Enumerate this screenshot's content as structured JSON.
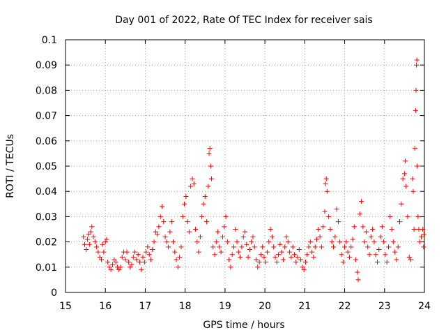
{
  "chart_data": {
    "type": "scatter",
    "title": "Day 001 of 2022, Rate Of TEC Index for receiver sais",
    "xlabel": "GPS time / hours",
    "ylabel": "ROTI / TECUs",
    "xlim": [
      15,
      24
    ],
    "ylim": [
      0,
      0.1
    ],
    "xticks": [
      "15",
      "16",
      "17",
      "18",
      "19",
      "20",
      "21",
      "22",
      "23",
      "24"
    ],
    "yticks": [
      "0",
      "0.01",
      "0.02",
      "0.03",
      "0.04",
      "0.05",
      "0.06",
      "0.07",
      "0.08",
      "0.09",
      "0.1"
    ],
    "grid": true,
    "marker": "+",
    "color": "#ff0000",
    "series": [
      {
        "points": [
          [
            15.45,
            0.022
          ],
          [
            15.48,
            0.019
          ],
          [
            15.52,
            0.017
          ],
          [
            15.55,
            0.021
          ],
          [
            15.58,
            0.023
          ],
          [
            15.6,
            0.019
          ],
          [
            15.63,
            0.024
          ],
          [
            15.66,
            0.026
          ],
          [
            15.7,
            0.022
          ],
          [
            15.74,
            0.02
          ],
          [
            15.78,
            0.018
          ],
          [
            15.82,
            0.016
          ],
          [
            15.86,
            0.014
          ],
          [
            15.9,
            0.013
          ],
          [
            15.93,
            0.019
          ],
          [
            15.96,
            0.016
          ],
          [
            16.0,
            0.02
          ],
          [
            16.03,
            0.021
          ],
          [
            16.06,
            0.012
          ],
          [
            16.1,
            0.01
          ],
          [
            16.14,
            0.009
          ],
          [
            16.18,
            0.011
          ],
          [
            16.22,
            0.013
          ],
          [
            16.26,
            0.012
          ],
          [
            16.3,
            0.01
          ],
          [
            16.34,
            0.009
          ],
          [
            16.38,
            0.01
          ],
          [
            16.42,
            0.014
          ],
          [
            16.46,
            0.016
          ],
          [
            16.5,
            0.013
          ],
          [
            16.54,
            0.016
          ],
          [
            16.58,
            0.012
          ],
          [
            16.62,
            0.01
          ],
          [
            16.66,
            0.011
          ],
          [
            16.7,
            0.014
          ],
          [
            16.74,
            0.016
          ],
          [
            16.78,
            0.013
          ],
          [
            16.82,
            0.015
          ],
          [
            16.86,
            0.012
          ],
          [
            16.9,
            0.009
          ],
          [
            16.94,
            0.014
          ],
          [
            16.98,
            0.012
          ],
          [
            17.02,
            0.016
          ],
          [
            17.06,
            0.018
          ],
          [
            17.1,
            0.015
          ],
          [
            17.14,
            0.013
          ],
          [
            17.18,
            0.017
          ],
          [
            17.22,
            0.02
          ],
          [
            17.26,
            0.024
          ],
          [
            17.3,
            0.023
          ],
          [
            17.34,
            0.026
          ],
          [
            17.38,
            0.03
          ],
          [
            17.42,
            0.034
          ],
          [
            17.46,
            0.028
          ],
          [
            17.5,
            0.022
          ],
          [
            17.54,
            0.02
          ],
          [
            17.58,
            0.018
          ],
          [
            17.62,
            0.024
          ],
          [
            17.66,
            0.028
          ],
          [
            17.7,
            0.02
          ],
          [
            17.74,
            0.016
          ],
          [
            17.78,
            0.013
          ],
          [
            17.82,
            0.01
          ],
          [
            17.86,
            0.014
          ],
          [
            17.9,
            0.018
          ],
          [
            17.94,
            0.03
          ],
          [
            17.98,
            0.035
          ],
          [
            18.02,
            0.038
          ],
          [
            18.06,
            0.028
          ],
          [
            18.1,
            0.024
          ],
          [
            18.14,
            0.042
          ],
          [
            18.18,
            0.045
          ],
          [
            18.22,
            0.043
          ],
          [
            18.26,
            0.025
          ],
          [
            18.3,
            0.02
          ],
          [
            18.34,
            0.016
          ],
          [
            18.38,
            0.022
          ],
          [
            18.42,
            0.03
          ],
          [
            18.46,
            0.035
          ],
          [
            18.5,
            0.038
          ],
          [
            18.54,
            0.028
          ],
          [
            18.58,
            0.042
          ],
          [
            18.6,
            0.055
          ],
          [
            18.62,
            0.057
          ],
          [
            18.64,
            0.05
          ],
          [
            18.66,
            0.045
          ],
          [
            18.7,
            0.018
          ],
          [
            18.74,
            0.015
          ],
          [
            18.78,
            0.02
          ],
          [
            18.82,
            0.024
          ],
          [
            18.86,
            0.018
          ],
          [
            18.9,
            0.016
          ],
          [
            18.94,
            0.022
          ],
          [
            18.98,
            0.026
          ],
          [
            19.02,
            0.03
          ],
          [
            19.06,
            0.02
          ],
          [
            19.1,
            0.013
          ],
          [
            19.14,
            0.01
          ],
          [
            19.18,
            0.015
          ],
          [
            19.22,
            0.018
          ],
          [
            19.26,
            0.025
          ],
          [
            19.3,
            0.02
          ],
          [
            19.34,
            0.016
          ],
          [
            19.38,
            0.014
          ],
          [
            19.42,
            0.018
          ],
          [
            19.46,
            0.022
          ],
          [
            19.5,
            0.024
          ],
          [
            19.54,
            0.019
          ],
          [
            19.58,
            0.014
          ],
          [
            19.62,
            0.017
          ],
          [
            19.66,
            0.02
          ],
          [
            19.7,
            0.022
          ],
          [
            19.74,
            0.018
          ],
          [
            19.78,
            0.013
          ],
          [
            19.82,
            0.01
          ],
          [
            19.86,
            0.012
          ],
          [
            19.9,
            0.015
          ],
          [
            19.94,
            0.018
          ],
          [
            19.98,
            0.014
          ],
          [
            20.02,
            0.012
          ],
          [
            20.06,
            0.016
          ],
          [
            20.1,
            0.02
          ],
          [
            20.14,
            0.025
          ],
          [
            20.18,
            0.022
          ],
          [
            20.22,
            0.018
          ],
          [
            20.26,
            0.014
          ],
          [
            20.3,
            0.012
          ],
          [
            20.34,
            0.015
          ],
          [
            20.38,
            0.019
          ],
          [
            20.42,
            0.016
          ],
          [
            20.46,
            0.013
          ],
          [
            20.5,
            0.018
          ],
          [
            20.54,
            0.022
          ],
          [
            20.58,
            0.02
          ],
          [
            20.62,
            0.016
          ],
          [
            20.66,
            0.014
          ],
          [
            20.7,
            0.018
          ],
          [
            20.74,
            0.015
          ],
          [
            20.78,
            0.012
          ],
          [
            20.82,
            0.014
          ],
          [
            20.86,
            0.017
          ],
          [
            20.9,
            0.013
          ],
          [
            20.94,
            0.01
          ],
          [
            20.98,
            0.009
          ],
          [
            21.02,
            0.012
          ],
          [
            21.06,
            0.015
          ],
          [
            21.1,
            0.018
          ],
          [
            21.14,
            0.02
          ],
          [
            21.18,
            0.016
          ],
          [
            21.22,
            0.014
          ],
          [
            21.26,
            0.018
          ],
          [
            21.3,
            0.021
          ],
          [
            21.34,
            0.025
          ],
          [
            21.38,
            0.022
          ],
          [
            21.42,
            0.018
          ],
          [
            21.46,
            0.026
          ],
          [
            21.5,
            0.032
          ],
          [
            21.52,
            0.043
          ],
          [
            21.54,
            0.045
          ],
          [
            21.56,
            0.04
          ],
          [
            21.6,
            0.03
          ],
          [
            21.64,
            0.025
          ],
          [
            21.68,
            0.02
          ],
          [
            21.72,
            0.018
          ],
          [
            21.76,
            0.022
          ],
          [
            21.8,
            0.033
          ],
          [
            21.84,
            0.028
          ],
          [
            21.88,
            0.02
          ],
          [
            21.92,
            0.015
          ],
          [
            21.96,
            0.012
          ],
          [
            22.0,
            0.018
          ],
          [
            22.04,
            0.02
          ],
          [
            22.08,
            0.016
          ],
          [
            22.12,
            0.014
          ],
          [
            22.16,
            0.018
          ],
          [
            22.2,
            0.021
          ],
          [
            22.24,
            0.026
          ],
          [
            22.28,
            0.013
          ],
          [
            22.32,
            0.008
          ],
          [
            22.34,
            0.005
          ],
          [
            22.38,
            0.031
          ],
          [
            22.42,
            0.036
          ],
          [
            22.46,
            0.026
          ],
          [
            22.5,
            0.02
          ],
          [
            22.54,
            0.024
          ],
          [
            22.58,
            0.018
          ],
          [
            22.62,
            0.015
          ],
          [
            22.66,
            0.022
          ],
          [
            22.7,
            0.025
          ],
          [
            22.74,
            0.02
          ],
          [
            22.78,
            0.015
          ],
          [
            22.82,
            0.012
          ],
          [
            22.86,
            0.017
          ],
          [
            22.9,
            0.022
          ],
          [
            22.94,
            0.026
          ],
          [
            22.98,
            0.02
          ],
          [
            23.02,
            0.015
          ],
          [
            23.06,
            0.012
          ],
          [
            23.1,
            0.018
          ],
          [
            23.14,
            0.03
          ],
          [
            23.18,
            0.025
          ],
          [
            23.22,
            0.02
          ],
          [
            23.26,
            0.016
          ],
          [
            23.3,
            0.013
          ],
          [
            23.34,
            0.018
          ],
          [
            23.38,
            0.028
          ],
          [
            23.42,
            0.035
          ],
          [
            23.46,
            0.045
          ],
          [
            23.5,
            0.047
          ],
          [
            23.52,
            0.052
          ],
          [
            23.54,
            0.042
          ],
          [
            23.58,
            0.03
          ],
          [
            23.62,
            0.014
          ],
          [
            23.66,
            0.013
          ],
          [
            23.7,
            0.045
          ],
          [
            23.72,
            0.04
          ],
          [
            23.74,
            0.025
          ],
          [
            23.76,
            0.057
          ],
          [
            23.78,
            0.072
          ],
          [
            23.79,
            0.08
          ],
          [
            23.8,
            0.09
          ],
          [
            23.81,
            0.092
          ],
          [
            23.82,
            0.05
          ],
          [
            23.84,
            0.03
          ],
          [
            23.86,
            0.025
          ],
          [
            23.88,
            0.02
          ],
          [
            23.92,
            0.022
          ],
          [
            23.96,
            0.025
          ],
          [
            23.98,
            0.018
          ],
          [
            23.99,
            0.023
          ]
        ]
      }
    ]
  }
}
